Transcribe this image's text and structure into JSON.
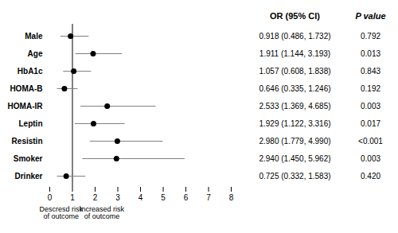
{
  "chart_data": {
    "type": "forest",
    "categories": [
      "Male",
      "Age",
      "HbA1c",
      "HOMA-B",
      "HOMA-IR",
      "Leptin",
      "Resistin",
      "Smoker",
      "Drinker"
    ],
    "values": [
      0.918,
      1.911,
      1.057,
      0.646,
      2.533,
      1.929,
      2.98,
      2.94,
      0.725
    ],
    "ci_lower": [
      0.486,
      1.144,
      0.608,
      0.335,
      1.369,
      1.122,
      1.779,
      1.45,
      0.332
    ],
    "ci_upper": [
      1.732,
      3.193,
      1.838,
      1.246,
      4.685,
      3.316,
      4.99,
      5.962,
      1.583
    ],
    "value_labels": [
      "0.918 (0.486, 1.732)",
      "1.911 (1.144, 3.193)",
      "1.057 (0.608, 1.838)",
      "0.646 (0.335, 1.246)",
      "2.533 (1.369, 4.685)",
      "1.929 (1.122, 3.316)",
      "2.980 (1.779, 4.990)",
      "2.940 (1.450, 5.962)",
      "0.725 (0.332, 1.583)"
    ],
    "p_values": [
      "0.792",
      "0.013",
      "0.843",
      "0.192",
      "0.003",
      "0.017",
      "<0.001",
      "0.003",
      "0.420"
    ],
    "column_headers": [
      "OR (95% CI)",
      "P value"
    ],
    "reference_line": 1,
    "annotations": [
      {
        "text": "Descresd risk\nof outcome",
        "x": 0.5
      },
      {
        "text": "Increased risk\nof outcome",
        "x": 2.3
      }
    ],
    "xlim": [
      0,
      8
    ],
    "xticks": [
      0,
      1,
      2,
      3,
      4,
      5,
      6,
      7,
      8
    ],
    "color": "#000000",
    "grid": false
  }
}
